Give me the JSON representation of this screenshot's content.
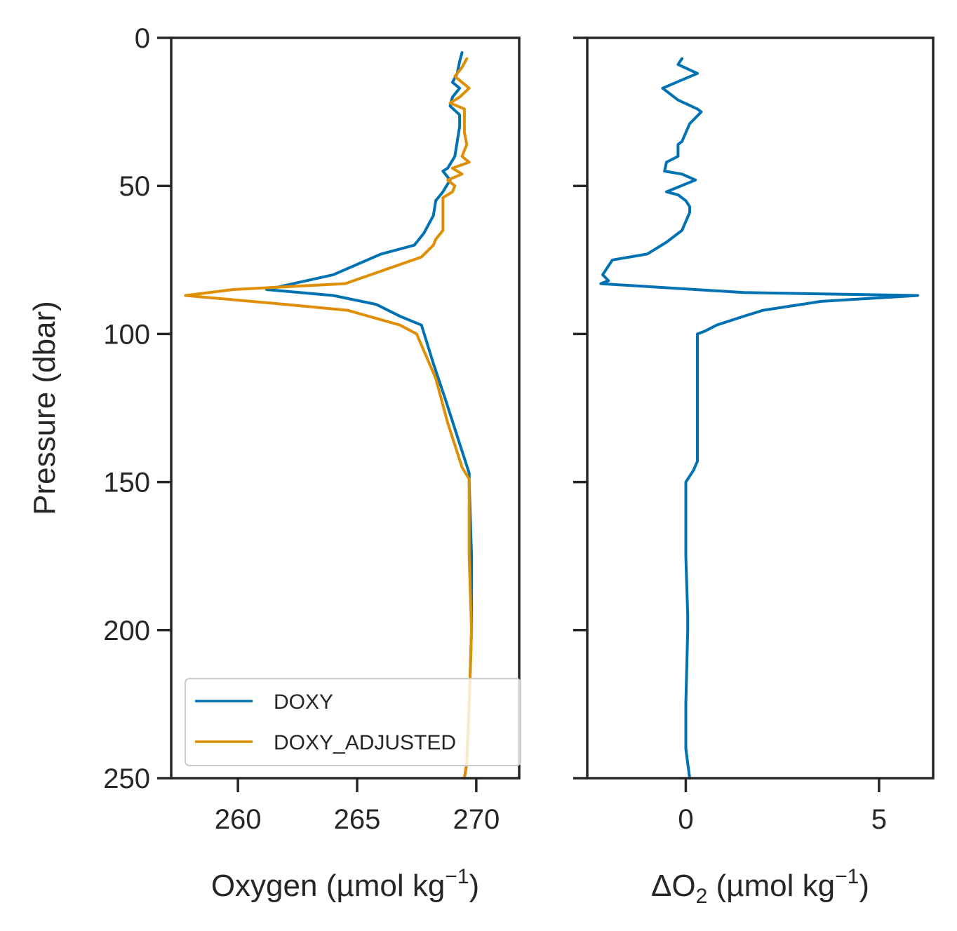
{
  "colors": {
    "doxy": "#0072b2",
    "doxy_adjusted": "#de8f05",
    "axes": "#262626"
  },
  "chart_data": [
    {
      "type": "line",
      "xlabel": "Oxygen (µmol kg",
      "xlabel_sup": "−1",
      "xlabel_end": ")",
      "ylabel": "Pressure (dbar)",
      "xlim": [
        257.2,
        271.8
      ],
      "ylim": [
        250,
        0
      ],
      "y_inverted": true,
      "xticks": [
        260,
        265,
        270
      ],
      "xtick_labels": [
        "260",
        "265",
        "270"
      ],
      "yticks": [
        0,
        50,
        100,
        150,
        200,
        250
      ],
      "ytick_labels": [
        "0",
        "50",
        "100",
        "150",
        "200",
        "250"
      ],
      "grid": false,
      "legend": {
        "position": "bottom-right",
        "entries": [
          "DOXY",
          "DOXY_ADJUSTED"
        ]
      },
      "series": [
        {
          "name": "DOXY",
          "color": "#0072b2",
          "points": [
            [
              269.4,
              5
            ],
            [
              269.3,
              8
            ],
            [
              269.2,
              12
            ],
            [
              269.0,
              15
            ],
            [
              269.3,
              17
            ],
            [
              269.0,
              20
            ],
            [
              268.9,
              23
            ],
            [
              269.3,
              26
            ],
            [
              269.3,
              30
            ],
            [
              269.2,
              35
            ],
            [
              269.1,
              40
            ],
            [
              268.8,
              44
            ],
            [
              268.6,
              45
            ],
            [
              268.9,
              48
            ],
            [
              268.6,
              52
            ],
            [
              268.3,
              55
            ],
            [
              268.2,
              60
            ],
            [
              268.0,
              63
            ],
            [
              267.8,
              66
            ],
            [
              267.4,
              70
            ],
            [
              266.0,
              73
            ],
            [
              264.0,
              80
            ],
            [
              261.2,
              85
            ],
            [
              264.0,
              87
            ],
            [
              265.8,
              90
            ],
            [
              266.8,
              94
            ],
            [
              267.7,
              97
            ],
            [
              268.2,
              110
            ],
            [
              268.7,
              122
            ],
            [
              269.3,
              137
            ],
            [
              269.7,
              147
            ],
            [
              269.7,
              150
            ],
            [
              269.8,
              175
            ],
            [
              269.8,
              200
            ],
            [
              269.7,
              225
            ],
            [
              269.6,
              245
            ],
            [
              269.5,
              250
            ]
          ]
        },
        {
          "name": "DOXY_ADJUSTED",
          "color": "#de8f05",
          "points": [
            [
              269.6,
              7
            ],
            [
              269.4,
              10
            ],
            [
              269.1,
              13
            ],
            [
              269.7,
              17
            ],
            [
              269.3,
              20
            ],
            [
              268.9,
              22
            ],
            [
              269.5,
              24
            ],
            [
              269.5,
              28
            ],
            [
              269.5,
              32
            ],
            [
              269.6,
              36
            ],
            [
              269.4,
              40
            ],
            [
              269.7,
              42
            ],
            [
              269.0,
              44
            ],
            [
              269.4,
              46
            ],
            [
              268.8,
              48
            ],
            [
              269.1,
              50
            ],
            [
              269.0,
              52
            ],
            [
              268.6,
              54
            ],
            [
              268.6,
              58
            ],
            [
              268.6,
              62
            ],
            [
              268.6,
              65
            ],
            [
              268.3,
              68
            ],
            [
              268.2,
              70
            ],
            [
              267.7,
              74
            ],
            [
              264.5,
              83
            ],
            [
              259.8,
              85
            ],
            [
              257.8,
              87
            ],
            [
              262.0,
              90
            ],
            [
              264.6,
              92
            ],
            [
              266.8,
              97
            ],
            [
              267.5,
              100
            ],
            [
              268.3,
              115
            ],
            [
              268.8,
              130
            ],
            [
              269.2,
              140
            ],
            [
              269.4,
              145
            ],
            [
              269.7,
              149
            ],
            [
              269.7,
              175
            ],
            [
              269.8,
              200
            ],
            [
              269.7,
              225
            ],
            [
              269.6,
              245
            ],
            [
              269.5,
              250
            ]
          ]
        }
      ]
    },
    {
      "type": "line",
      "xlabel_pre": "ΔO",
      "xlabel_sub": "2",
      "xlabel": " (µmol kg",
      "xlabel_sup": "−1",
      "xlabel_end": ")",
      "xlim": [
        -2.55,
        6.4
      ],
      "ylim": [
        250,
        0
      ],
      "y_inverted": true,
      "shared_y": true,
      "xticks": [
        0,
        5
      ],
      "xtick_labels": [
        "0",
        "5"
      ],
      "yticks": [
        0,
        50,
        100,
        150,
        200,
        250
      ],
      "grid": false,
      "series": [
        {
          "name": "ΔO2",
          "color": "#0072b2",
          "points": [
            [
              -0.1,
              7
            ],
            [
              -0.2,
              9
            ],
            [
              0.3,
              12
            ],
            [
              -0.6,
              17
            ],
            [
              -0.2,
              21
            ],
            [
              0.3,
              24
            ],
            [
              0.4,
              25
            ],
            [
              0.1,
              29
            ],
            [
              -0.1,
              35
            ],
            [
              -0.2,
              36
            ],
            [
              -0.2,
              40
            ],
            [
              -0.5,
              42
            ],
            [
              -0.55,
              45
            ],
            [
              -0.1,
              46
            ],
            [
              0.25,
              48
            ],
            [
              -0.5,
              52
            ],
            [
              -0.2,
              53
            ],
            [
              0.0,
              55
            ],
            [
              0.1,
              57
            ],
            [
              0.1,
              59
            ],
            [
              -0.1,
              65
            ],
            [
              -0.5,
              69
            ],
            [
              -1.0,
              73
            ],
            [
              -1.9,
              75
            ],
            [
              -2.05,
              78
            ],
            [
              -2.15,
              80
            ],
            [
              -2.0,
              82
            ],
            [
              -2.2,
              83
            ],
            [
              1.5,
              86
            ],
            [
              6.0,
              87
            ],
            [
              3.5,
              89
            ],
            [
              2.0,
              92
            ],
            [
              1.5,
              94
            ],
            [
              0.8,
              97
            ],
            [
              0.5,
              99
            ],
            [
              0.3,
              100
            ],
            [
              0.3,
              113
            ],
            [
              0.3,
              130
            ],
            [
              0.3,
              143
            ],
            [
              0.2,
              146
            ],
            [
              0.0,
              150
            ],
            [
              0.0,
              175
            ],
            [
              0.05,
              195
            ],
            [
              0.05,
              200
            ],
            [
              0.0,
              225
            ],
            [
              0.0,
              240
            ],
            [
              0.05,
              245
            ],
            [
              0.1,
              250
            ]
          ]
        }
      ]
    }
  ]
}
